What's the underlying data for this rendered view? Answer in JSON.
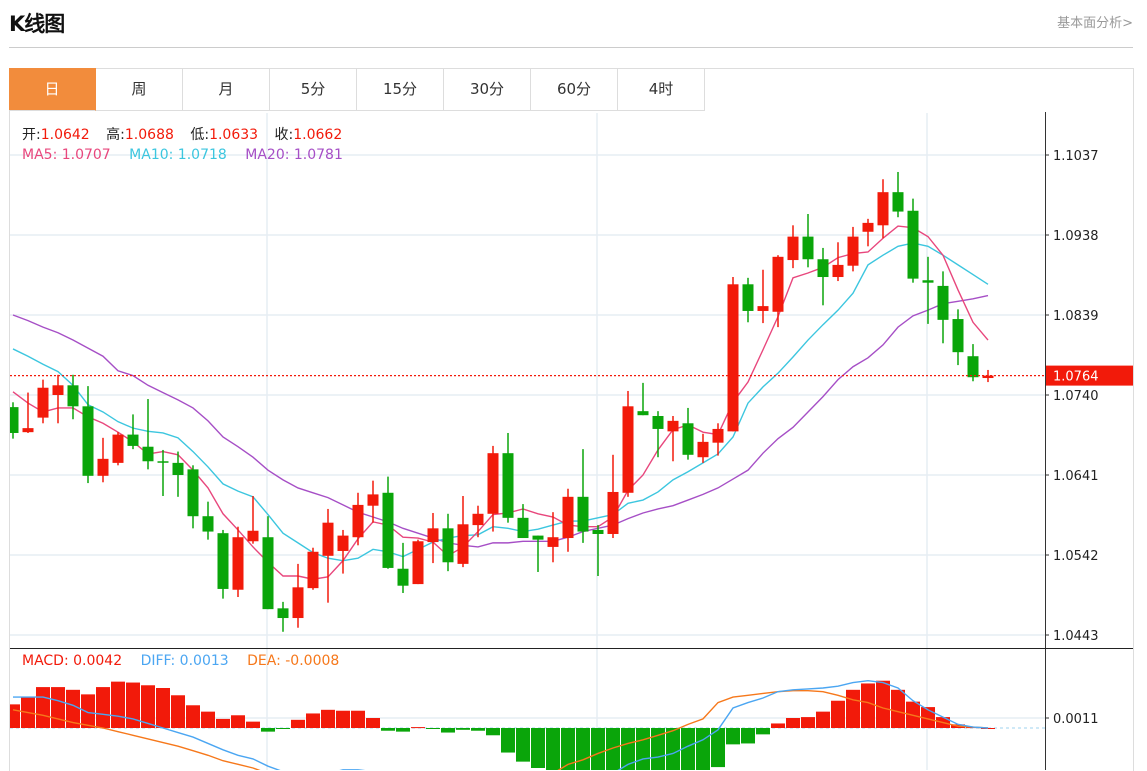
{
  "header": {
    "title": "K线图",
    "link": "基本面分析>"
  },
  "tabs": [
    {
      "label": "日",
      "active": true
    },
    {
      "label": "周",
      "active": false
    },
    {
      "label": "月",
      "active": false
    },
    {
      "label": "5分",
      "active": false
    },
    {
      "label": "15分",
      "active": false
    },
    {
      "label": "30分",
      "active": false
    },
    {
      "label": "60分",
      "active": false
    },
    {
      "label": "4时",
      "active": false
    }
  ],
  "legend": {
    "open_label": "开:",
    "open": "1.0642",
    "high_label": "高:",
    "high": "1.0688",
    "low_label": "低:",
    "low": "1.0633",
    "close_label": "收:",
    "close": "1.0662",
    "ma5": "MA5: 1.0707",
    "ma10": "MA10: 1.0718",
    "ma20": "MA20: 1.0781",
    "macd": "MACD: 0.0042",
    "diff": "DIFF: 0.0013",
    "dea": "DEA: -0.0008"
  },
  "colors": {
    "up": "#f21a0a",
    "down": "#0aa50a",
    "ma5": "#e8477d",
    "ma10": "#3cc6df",
    "ma20": "#a64fc6",
    "diff": "#4ba6f2",
    "dea": "#f6781b",
    "accent": "#f28c3c"
  },
  "chart_data": {
    "type": "candlestick",
    "title": "K线图",
    "ylim": [
      1.0443,
      1.1037
    ],
    "y_ticks": [
      "1.1037",
      "1.0938",
      "1.0839",
      "1.0740",
      "1.0641",
      "1.0542",
      "1.0443"
    ],
    "last_price": "1.0764",
    "candle_fields": [
      "open",
      "high",
      "low",
      "close"
    ],
    "candles": [
      [
        1.0725,
        1.0731,
        1.0686,
        1.0693
      ],
      [
        1.0694,
        1.0743,
        1.0693,
        1.0699
      ],
      [
        1.0712,
        1.0759,
        1.0705,
        1.0749
      ],
      [
        1.074,
        1.0765,
        1.0705,
        1.0752
      ],
      [
        1.0752,
        1.0765,
        1.071,
        1.0726
      ],
      [
        1.0726,
        1.0751,
        1.0631,
        1.064
      ],
      [
        1.064,
        1.0687,
        1.0632,
        1.0661
      ],
      [
        1.0656,
        1.0694,
        1.0653,
        1.0691
      ],
      [
        1.0691,
        1.0716,
        1.0673,
        1.0677
      ],
      [
        1.0676,
        1.0735,
        1.0648,
        1.0658
      ],
      [
        1.0658,
        1.0672,
        1.0615,
        1.0657
      ],
      [
        1.0656,
        1.067,
        1.0614,
        1.0641
      ],
      [
        1.0648,
        1.0653,
        1.0575,
        1.059
      ],
      [
        1.059,
        1.0608,
        1.0561,
        1.0571
      ],
      [
        1.0569,
        1.0573,
        1.0488,
        1.05
      ],
      [
        1.0499,
        1.0577,
        1.049,
        1.0564
      ],
      [
        1.0559,
        1.0615,
        1.0556,
        1.0572
      ],
      [
        1.0564,
        1.059,
        1.0475,
        1.0475
      ],
      [
        1.0476,
        1.0484,
        1.0447,
        1.0464
      ],
      [
        1.0464,
        1.0531,
        1.0452,
        1.0502
      ],
      [
        1.0501,
        1.0551,
        1.0499,
        1.0546
      ],
      [
        1.0541,
        1.0599,
        1.0483,
        1.0582
      ],
      [
        1.0547,
        1.0573,
        1.0519,
        1.0566
      ],
      [
        1.0564,
        1.0619,
        1.0554,
        1.0604
      ],
      [
        1.0603,
        1.0634,
        1.0582,
        1.0617
      ],
      [
        1.0619,
        1.0639,
        1.0525,
        1.0526
      ],
      [
        1.0525,
        1.0557,
        1.0495,
        1.0504
      ],
      [
        1.0506,
        1.0561,
        1.0506,
        1.0559
      ],
      [
        1.0558,
        1.0594,
        1.0532,
        1.0575
      ],
      [
        1.0575,
        1.0593,
        1.0522,
        1.0533
      ],
      [
        1.0531,
        1.0615,
        1.0527,
        1.058
      ],
      [
        1.0579,
        1.0603,
        1.0564,
        1.0593
      ],
      [
        1.0593,
        1.0677,
        1.0571,
        1.0668
      ],
      [
        1.0668,
        1.0693,
        1.0582,
        1.0588
      ],
      [
        1.0588,
        1.0605,
        1.0563,
        1.0563
      ],
      [
        1.0566,
        1.0566,
        1.0521,
        1.0561
      ],
      [
        1.0552,
        1.0595,
        1.0533,
        1.0564
      ],
      [
        1.0563,
        1.0624,
        1.0546,
        1.0614
      ],
      [
        1.0614,
        1.0673,
        1.0557,
        1.0571
      ],
      [
        1.0573,
        1.0579,
        1.0516,
        1.0568
      ],
      [
        1.0568,
        1.0666,
        1.0563,
        1.062
      ],
      [
        1.0619,
        1.0745,
        1.0614,
        1.0726
      ],
      [
        1.072,
        1.0755,
        1.0715,
        1.0715
      ],
      [
        1.0714,
        1.072,
        1.0663,
        1.0698
      ],
      [
        1.0695,
        1.0714,
        1.0658,
        1.0708
      ],
      [
        1.0705,
        1.0724,
        1.066,
        1.0666
      ],
      [
        1.0663,
        1.0692,
        1.0656,
        1.0682
      ],
      [
        1.0681,
        1.0705,
        1.0665,
        1.0698
      ],
      [
        1.0695,
        1.0886,
        1.0695,
        1.0877
      ],
      [
        1.0877,
        1.0885,
        1.083,
        1.0844
      ],
      [
        1.0844,
        1.0895,
        1.0829,
        1.085
      ],
      [
        1.0843,
        1.0913,
        1.0824,
        1.0911
      ],
      [
        1.0907,
        1.095,
        1.0897,
        1.0936
      ],
      [
        1.0936,
        1.0964,
        1.0898,
        1.0908
      ],
      [
        1.0908,
        1.0922,
        1.0851,
        1.0886
      ],
      [
        1.0886,
        1.0929,
        1.0881,
        1.0901
      ],
      [
        1.09,
        1.0948,
        1.0893,
        1.0936
      ],
      [
        1.0942,
        1.0958,
        1.0924,
        1.0953
      ],
      [
        1.095,
        1.1007,
        1.0934,
        1.0991
      ],
      [
        1.0991,
        1.1016,
        1.096,
        1.0967
      ],
      [
        1.0968,
        1.0983,
        1.0879,
        1.0884
      ],
      [
        1.0882,
        1.0911,
        1.0828,
        1.0879
      ],
      [
        1.0875,
        1.0893,
        1.0804,
        1.0833
      ],
      [
        1.0834,
        1.0846,
        1.0777,
        1.0793
      ],
      [
        1.0788,
        1.0803,
        1.0757,
        1.0762
      ],
      [
        1.0761,
        1.0771,
        1.0756,
        1.0764
      ]
    ],
    "ma5": [
      1.0744,
      1.073,
      1.0719,
      1.0724,
      1.0724,
      1.0713,
      1.0705,
      1.0694,
      1.0682,
      1.0667,
      1.067,
      1.0666,
      1.0647,
      1.0625,
      1.0593,
      1.0573,
      1.0552,
      1.0533,
      1.0516,
      1.0516,
      1.0512,
      1.0515,
      1.0535,
      1.0562,
      1.0583,
      1.0579,
      1.0564,
      1.0563,
      1.0558,
      1.0541,
      1.0552,
      1.0571,
      1.0592,
      1.0594,
      1.0599,
      1.0593,
      1.0589,
      1.0579,
      1.0577,
      1.0577,
      1.0589,
      1.0622,
      1.0641,
      1.0672,
      1.0697,
      1.0703,
      1.0694,
      1.0691,
      1.0731,
      1.0756,
      1.0796,
      1.0837,
      1.0885,
      1.0891,
      1.0898,
      1.091,
      1.0915,
      1.0917,
      1.0934,
      1.0949,
      1.0947,
      1.0936,
      1.0913,
      1.087,
      1.083,
      1.0808
    ],
    "ma10": [
      1.0797,
      1.0788,
      1.0778,
      1.0769,
      1.0752,
      1.0728,
      1.0719,
      1.0707,
      1.0699,
      1.0695,
      1.0693,
      1.0687,
      1.067,
      1.0651,
      1.063,
      1.0621,
      1.0614,
      1.0592,
      1.0569,
      1.0557,
      1.0545,
      1.0538,
      1.0535,
      1.0538,
      1.0549,
      1.0546,
      1.054,
      1.0549,
      1.0558,
      1.0563,
      1.0566,
      1.0567,
      1.0577,
      1.0575,
      1.0571,
      1.0574,
      1.0579,
      1.0584,
      1.0584,
      1.0588,
      1.0592,
      1.0606,
      1.061,
      1.062,
      1.0635,
      1.0645,
      1.0656,
      1.0667,
      1.0688,
      1.073,
      1.075,
      1.0767,
      1.0787,
      1.0808,
      1.0827,
      1.0845,
      1.0866,
      1.0901,
      1.0913,
      1.0924,
      1.0928,
      1.0924,
      1.0913,
      1.0901,
      1.0889,
      1.0877
    ],
    "ma20": [
      1.0839,
      1.0832,
      1.0824,
      1.0817,
      1.0808,
      1.0798,
      1.0788,
      1.077,
      1.0764,
      1.0752,
      1.0743,
      1.0734,
      1.0724,
      1.0708,
      1.0688,
      1.0676,
      1.0663,
      1.0647,
      1.0635,
      1.0625,
      1.0619,
      1.0613,
      1.0604,
      1.0595,
      1.0589,
      1.0583,
      1.0575,
      1.0569,
      1.0563,
      1.0557,
      1.0554,
      1.0552,
      1.0557,
      1.0557,
      1.0559,
      1.0559,
      1.0559,
      1.0564,
      1.0571,
      1.0575,
      1.0579,
      1.0587,
      1.0594,
      1.0599,
      1.0603,
      1.061,
      1.0617,
      1.0625,
      1.0636,
      1.0647,
      1.0668,
      1.0686,
      1.07,
      1.0719,
      1.0738,
      1.0759,
      1.0775,
      1.0786,
      1.0802,
      1.0824,
      1.0838,
      1.0845,
      1.0853,
      1.0856,
      1.0859,
      1.0863
    ],
    "macd_panel": {
      "y_tick": "0.0011",
      "y_tick_value": 0.0011,
      "hist": [
        0.0026,
        0.0034,
        0.0045,
        0.0045,
        0.0042,
        0.0037,
        0.0045,
        0.0051,
        0.005,
        0.0047,
        0.0044,
        0.0036,
        0.0025,
        0.0018,
        0.001,
        0.0014,
        0.0007,
        -0.0004,
        -0.0001,
        0.0009,
        0.0016,
        0.002,
        0.0019,
        0.0019,
        0.0011,
        -0.0003,
        -0.0004,
        0.0001,
        -0.0001,
        -0.0005,
        -0.0002,
        -0.0003,
        -0.0008,
        -0.0027,
        -0.0037,
        -0.0044,
        -0.005,
        -0.0055,
        -0.0058,
        -0.006,
        -0.0058,
        -0.0055,
        -0.0056,
        -0.0055,
        -0.0052,
        -0.005,
        -0.0047,
        -0.0043,
        -0.0018,
        -0.0017,
        -0.0007,
        0.0005,
        0.0011,
        0.0012,
        0.0018,
        0.003,
        0.0042,
        0.0049,
        0.0052,
        0.0042,
        0.0029,
        0.0023,
        0.0012,
        0.0004,
        0.0001,
        0.0
      ],
      "diff": [
        0.0034,
        0.0034,
        0.0034,
        0.003,
        0.0025,
        0.0017,
        0.0015,
        0.0013,
        0.001,
        0.0005,
        0.0,
        -0.0005,
        -0.001,
        -0.0017,
        -0.0024,
        -0.003,
        -0.0034,
        -0.0042,
        -0.0048,
        -0.005,
        -0.0052,
        -0.005,
        -0.0046,
        -0.0046,
        -0.0048,
        -0.0052,
        -0.0055,
        -0.0055,
        -0.0056,
        -0.0057,
        -0.0058,
        -0.006,
        -0.0062,
        -0.0068,
        -0.0074,
        -0.008,
        -0.0085,
        -0.0088,
        -0.0085,
        -0.007,
        -0.005,
        -0.004,
        -0.0034,
        -0.0032,
        -0.0028,
        -0.002,
        -0.0013,
        -0.0002,
        0.0022,
        0.0028,
        0.0033,
        0.004,
        0.0042,
        0.0043,
        0.0044,
        0.0046,
        0.005,
        0.0052,
        0.005,
        0.0044,
        0.003,
        0.002,
        0.0012,
        0.0004,
        0.0001,
        0.0
      ],
      "dea": [
        0.002,
        0.0017,
        0.0014,
        0.001,
        0.0006,
        0.0003,
        0.0,
        -0.0004,
        -0.0008,
        -0.0012,
        -0.0016,
        -0.002,
        -0.0025,
        -0.003,
        -0.0036,
        -0.004,
        -0.0044,
        -0.005,
        -0.0052,
        -0.0053,
        -0.0053,
        -0.0053,
        -0.0053,
        -0.0053,
        -0.0053,
        -0.0053,
        -0.0054,
        -0.0054,
        -0.0055,
        -0.0055,
        -0.0056,
        -0.0056,
        -0.0056,
        -0.0058,
        -0.0058,
        -0.0055,
        -0.005,
        -0.004,
        -0.0035,
        -0.0028,
        -0.0022,
        -0.0017,
        -0.0013,
        -0.0008,
        -0.0003,
        0.0004,
        0.001,
        0.0028,
        0.0034,
        0.0036,
        0.0038,
        0.004,
        0.0041,
        0.0041,
        0.004,
        0.0036,
        0.0031,
        0.0028,
        0.0022,
        0.0018,
        0.0014,
        0.001,
        0.0006,
        0.0002,
        0.0001,
        0.0
      ]
    }
  }
}
